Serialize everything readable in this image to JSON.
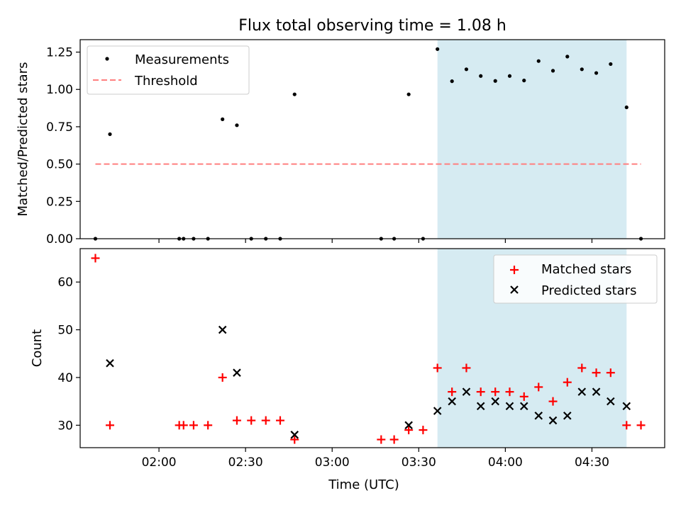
{
  "figure_title": "Flux total observing time = 1.08 h",
  "colors": {
    "measurement": "#000000",
    "threshold": "#ff7f7f",
    "matched": "#ff0000",
    "predicted": "#000000",
    "shade": "#add8e6"
  },
  "chart_data": [
    {
      "type": "scatter",
      "title": "Flux total observing time = 1.08 h",
      "xlabel": "",
      "ylabel": "Matched/Predicted stars",
      "xlim": [
        1.545,
        4.92
      ],
      "ylim": [
        0,
        1.3333
      ],
      "yticks": [
        0.0,
        0.25,
        0.5,
        0.75,
        1.0,
        1.25
      ],
      "ytick_labels": [
        "0.00",
        "0.25",
        "0.50",
        "0.75",
        "1.00",
        "1.25"
      ],
      "xticks": [
        2.0,
        2.5,
        3.0,
        3.5,
        4.0,
        4.5
      ],
      "legend_position": "top-left",
      "series": [
        {
          "name": "Measurements",
          "kind": "dot",
          "x": [
            1.633,
            1.717,
            2.117,
            2.142,
            2.2,
            2.283,
            2.367,
            2.45,
            2.533,
            2.617,
            2.7,
            2.783,
            3.283,
            3.358,
            3.442,
            3.525,
            3.608,
            3.692,
            3.775,
            3.858,
            3.942,
            4.025,
            4.108,
            4.192,
            4.275,
            4.358,
            4.442,
            4.525,
            4.608,
            4.7,
            4.783
          ],
          "y": [
            0.0,
            0.7,
            0.0,
            0.0,
            0.0,
            0.0,
            0.8,
            0.76,
            0.0,
            0.0,
            0.0,
            0.967,
            0.0,
            0.0,
            0.967,
            0.0,
            1.27,
            1.055,
            1.135,
            1.09,
            1.057,
            1.09,
            1.06,
            1.19,
            1.125,
            1.22,
            1.135,
            1.11,
            1.17,
            0.88,
            0.0
          ]
        },
        {
          "name": "Threshold",
          "kind": "dashed-line",
          "x": [
            1.633,
            4.783
          ],
          "y": [
            0.5,
            0.5
          ]
        }
      ],
      "shaded_region": {
        "x_start": 3.608,
        "x_end": 4.7
      }
    },
    {
      "type": "scatter",
      "title": "",
      "xlabel": "Time (UTC)",
      "ylabel": "Count",
      "xlim": [
        1.545,
        4.92
      ],
      "ylim": [
        25.3,
        67.0
      ],
      "yticks": [
        30,
        40,
        50,
        60
      ],
      "ytick_labels": [
        "30",
        "40",
        "50",
        "60"
      ],
      "xticks": [
        2.0,
        2.5,
        3.0,
        3.5,
        4.0,
        4.5
      ],
      "xtick_labels": [
        "02:00",
        "02:30",
        "03:00",
        "03:30",
        "04:00",
        "04:30"
      ],
      "legend_position": "top-right",
      "series": [
        {
          "name": "Matched stars",
          "marker": "+",
          "x": [
            1.633,
            1.717,
            2.117,
            2.142,
            2.2,
            2.283,
            2.367,
            2.45,
            2.533,
            2.617,
            2.7,
            2.783,
            3.283,
            3.358,
            3.442,
            3.525,
            3.608,
            3.692,
            3.775,
            3.858,
            3.942,
            4.025,
            4.108,
            4.192,
            4.275,
            4.358,
            4.442,
            4.525,
            4.608,
            4.7,
            4.783
          ],
          "y": [
            65,
            30,
            30,
            30,
            30,
            30,
            40,
            31,
            31,
            31,
            31,
            27,
            27,
            27,
            29,
            29,
            42,
            37,
            42,
            37,
            37,
            37,
            36,
            38,
            35,
            39,
            42,
            41,
            41,
            30,
            30
          ]
        },
        {
          "name": "Predicted stars",
          "marker": "x",
          "x": [
            1.717,
            2.367,
            2.45,
            2.783,
            3.442,
            3.608,
            3.692,
            3.775,
            3.858,
            3.942,
            4.025,
            4.108,
            4.192,
            4.275,
            4.358,
            4.442,
            4.525,
            4.608,
            4.7
          ],
          "y": [
            43,
            50,
            41,
            28,
            30,
            33,
            35,
            37,
            34,
            35,
            34,
            34,
            32,
            31,
            32,
            37,
            37,
            35,
            34
          ]
        }
      ],
      "shaded_region": {
        "x_start": 3.608,
        "x_end": 4.7
      }
    }
  ]
}
